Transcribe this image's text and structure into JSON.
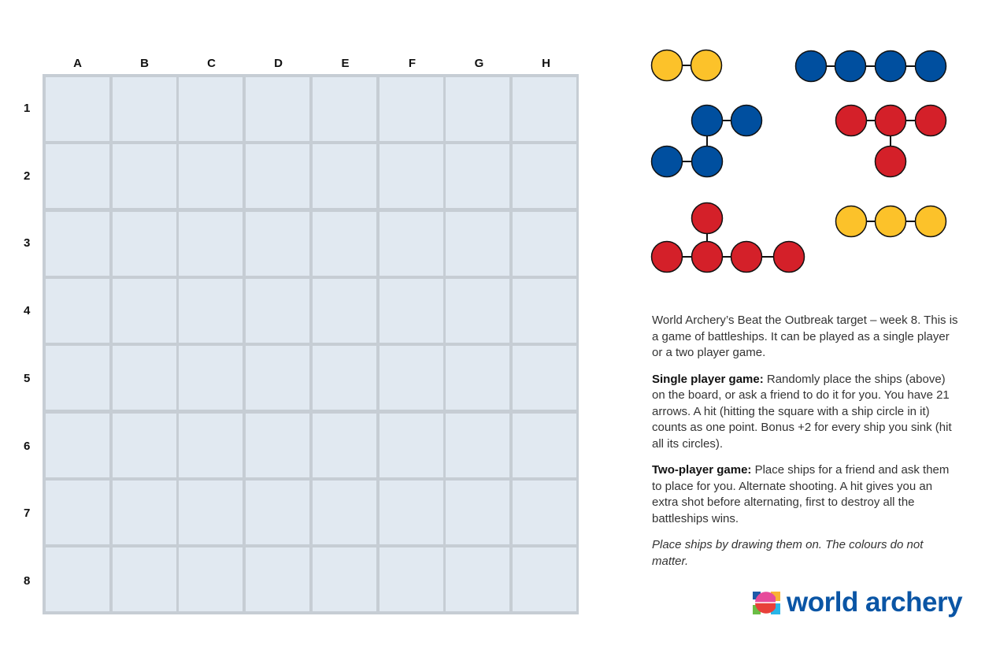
{
  "board": {
    "columns": [
      "A",
      "B",
      "C",
      "D",
      "E",
      "F",
      "G",
      "H"
    ],
    "rows": [
      "1",
      "2",
      "3",
      "4",
      "5",
      "6",
      "7",
      "8"
    ]
  },
  "colors": {
    "yellow": "#fcc22a",
    "blue": "#004f9f",
    "red": "#d42029",
    "grid_border": "#c6cdd4",
    "cell": "#e1e9f1"
  },
  "ships": [
    {
      "name": "yellow-2",
      "color": "yellow",
      "size": 2
    },
    {
      "name": "blue-4",
      "color": "blue",
      "size": 4
    },
    {
      "name": "blue-z",
      "color": "blue",
      "size": 4
    },
    {
      "name": "red-t",
      "color": "red",
      "size": 4
    },
    {
      "name": "red-5",
      "color": "red",
      "size": 5
    },
    {
      "name": "yellow-3",
      "color": "yellow",
      "size": 3
    }
  ],
  "text": {
    "intro": "World Archery’s Beat the Outbreak target – week 8. This is a game of battleships. It can be played as a single player or a two player game.",
    "single_title": "Single player game:",
    "single_body": " Randomly place the ships (above) on the board, or ask a friend to do it for you. You have 21 arrows. A hit (hitting the square with a ship circle in it) counts as one point. Bonus +2 for every ship you sink (hit all its circles).",
    "two_title": "Two-player game:",
    "two_body": " Place ships for a friend and ask them to place for you. Alternate shooting. A hit gives you an extra shot before alternating, first to destroy all the battleships wins.",
    "note": "Place ships by drawing them on. The colours do not matter."
  },
  "logo": {
    "text": "world archery"
  }
}
